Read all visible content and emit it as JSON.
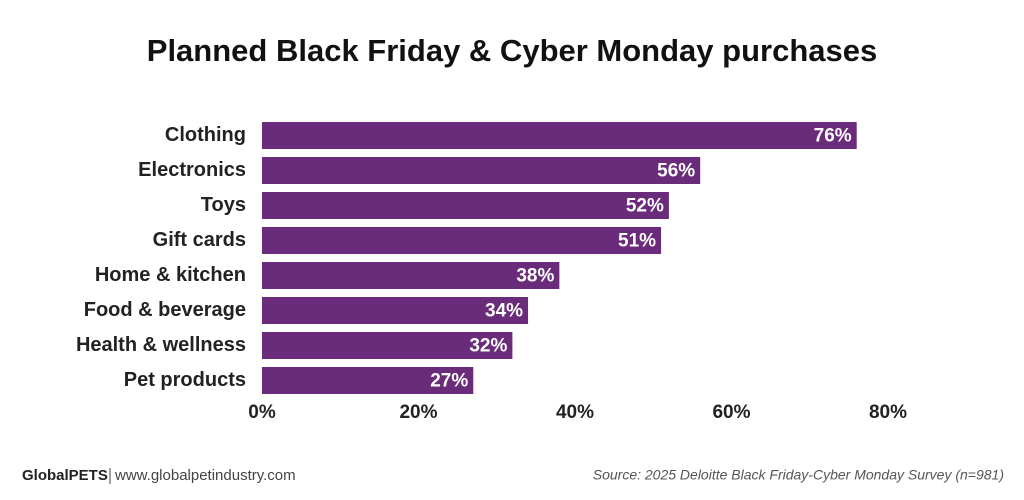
{
  "chart_data": {
    "type": "bar",
    "orientation": "horizontal",
    "title": "Planned Black Friday & Cyber Monday purchases",
    "categories": [
      "Clothing",
      "Electronics",
      "Toys",
      "Gift cards",
      "Home & kitchen",
      "Food & beverage",
      "Health & wellness",
      "Pet products"
    ],
    "values": [
      76,
      56,
      52,
      51,
      38,
      34,
      32,
      27
    ],
    "value_labels": [
      "76%",
      "56%",
      "52%",
      "51%",
      "38%",
      "34%",
      "32%",
      "27%"
    ],
    "color": "#6a2c7a",
    "xlim": [
      0,
      80
    ],
    "xticks": [
      {
        "value": 0,
        "label": "0%"
      },
      {
        "value": 20,
        "label": "20%"
      },
      {
        "value": 40,
        "label": "40%"
      },
      {
        "value": 60,
        "label": "60%"
      },
      {
        "value": 80,
        "label": "80%"
      }
    ],
    "grid": false,
    "brand": "GlobalPETS",
    "website": "www.globalpetindustry.com",
    "source": "Source: 2025 Deloitte Black Friday-Cyber Monday Survey (n=981)"
  }
}
